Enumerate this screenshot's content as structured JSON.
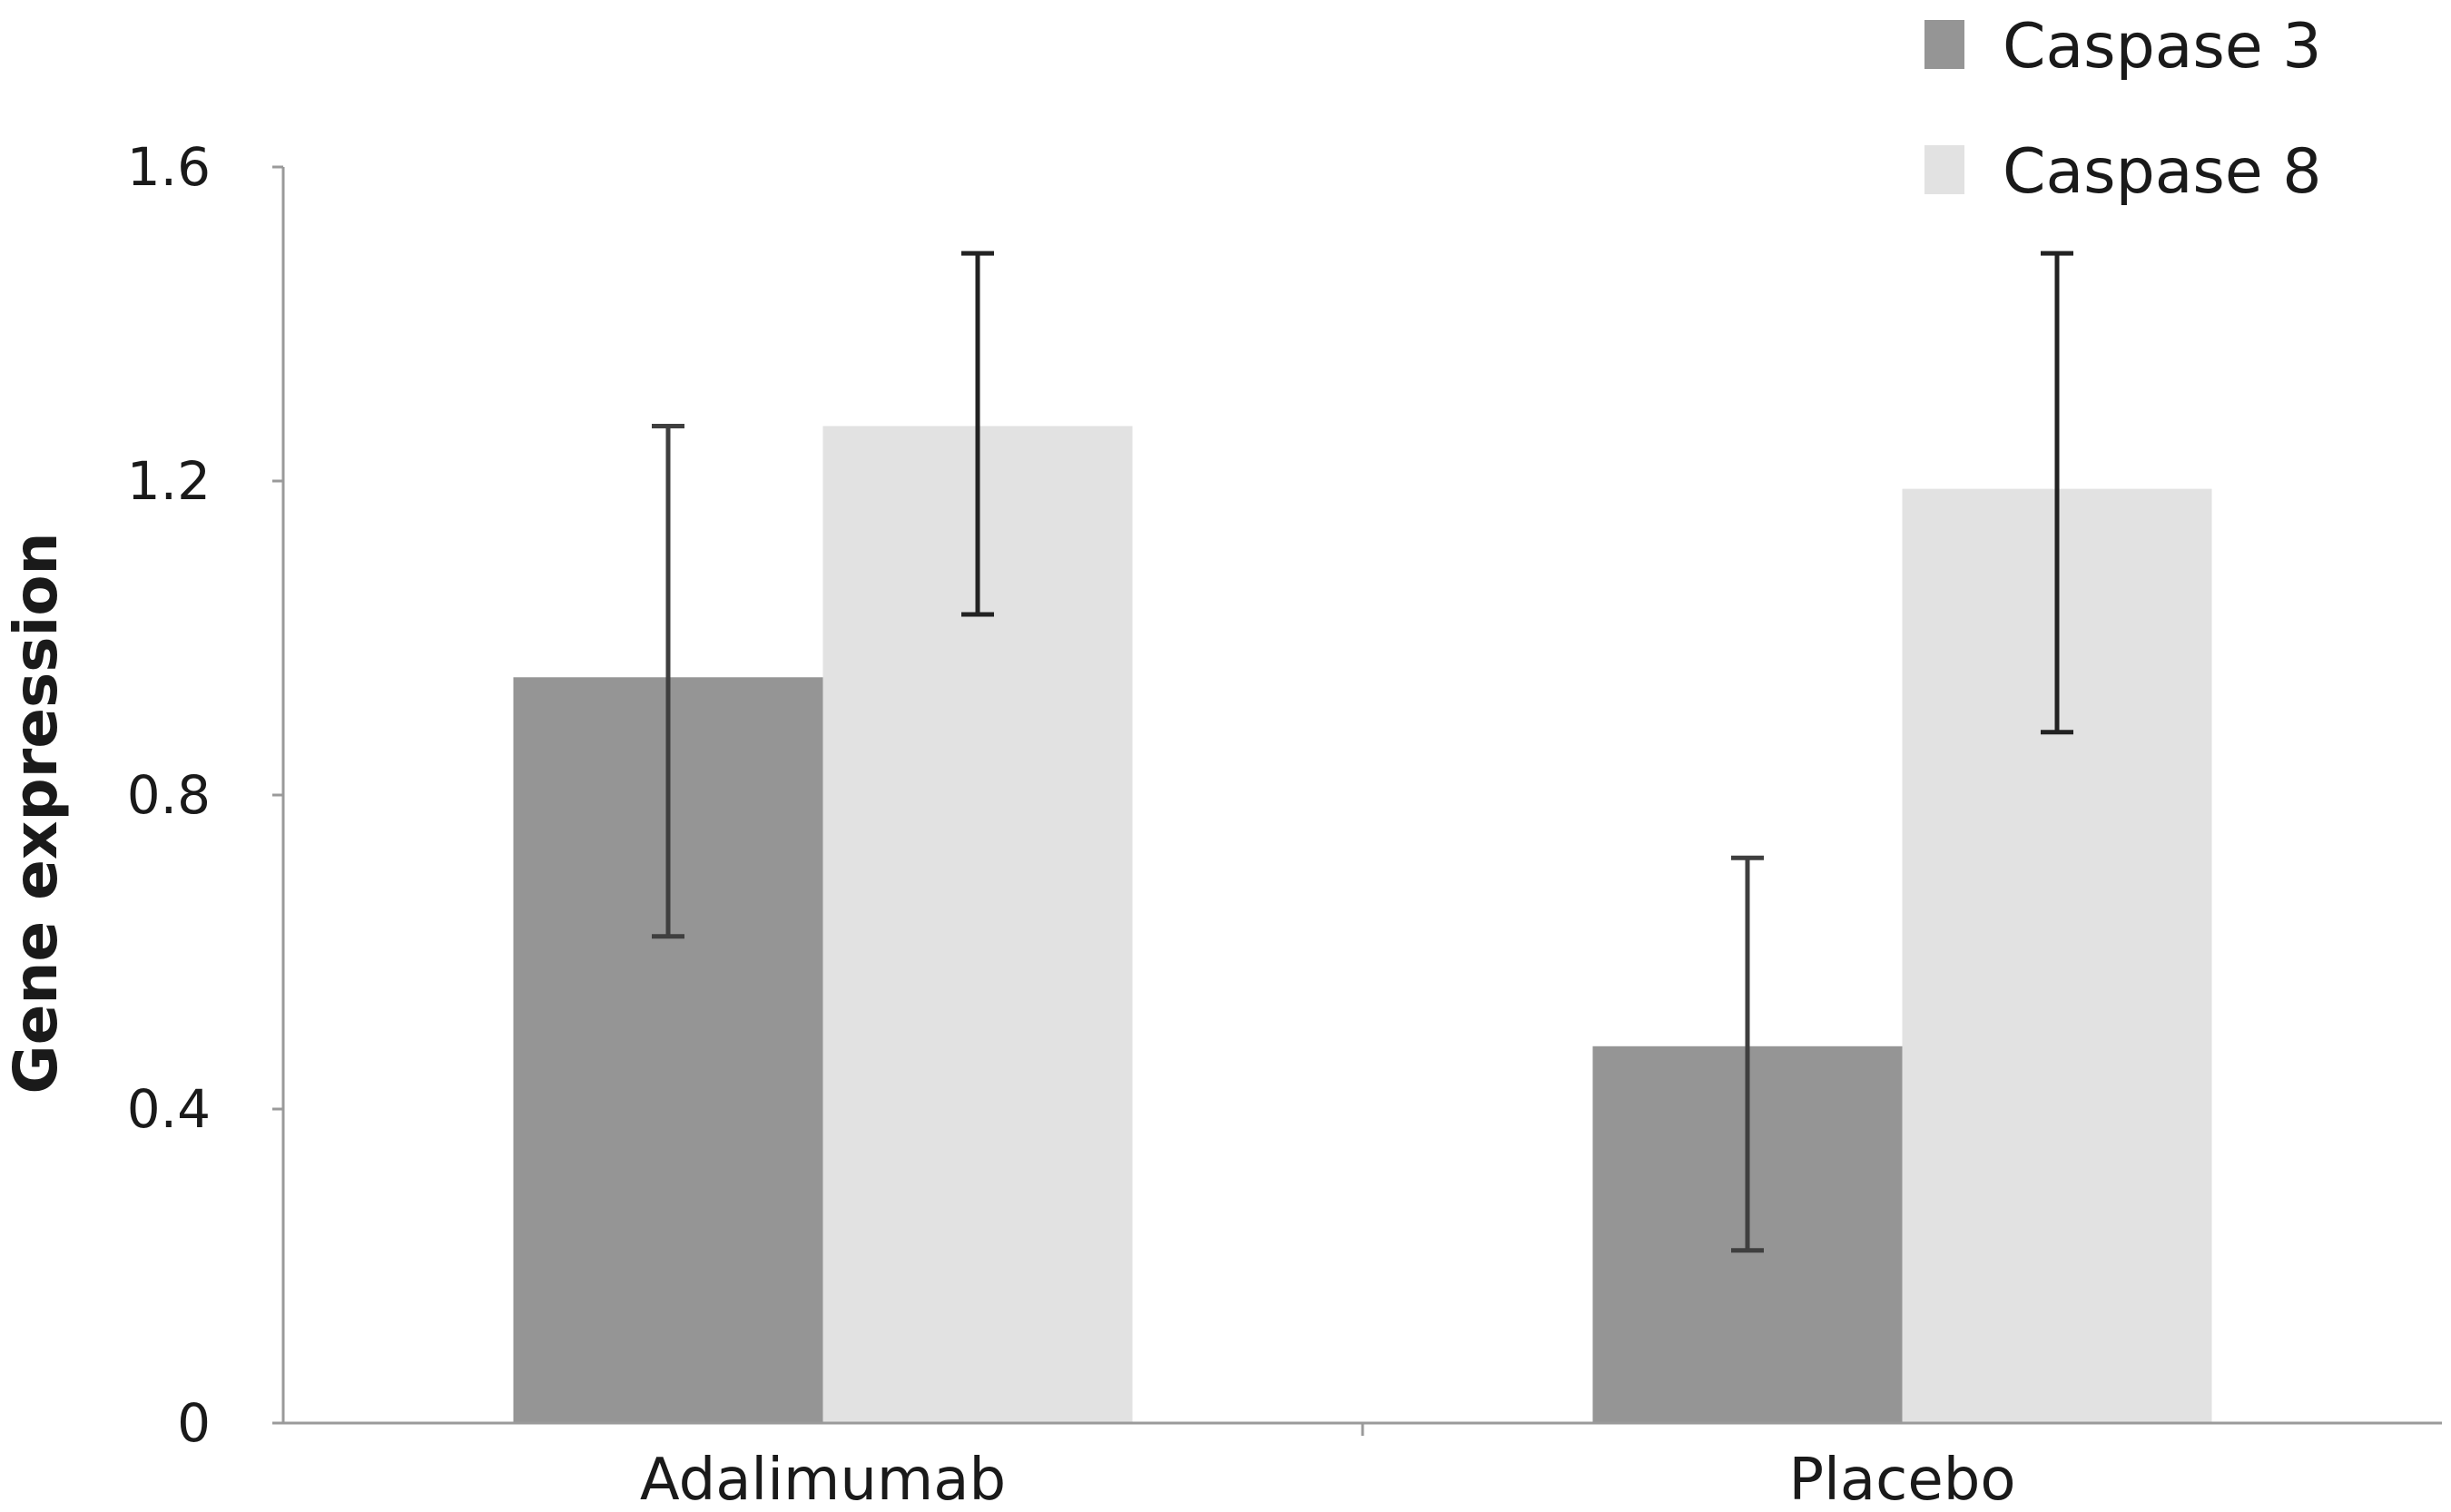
{
  "chart_data": {
    "type": "bar",
    "categories": [
      "Adalimumab",
      "Placebo"
    ],
    "series": [
      {
        "name": "Caspase 3",
        "color": "#959595",
        "values": [
          0.95,
          0.48
        ],
        "error_low": [
          0.62,
          0.22
        ],
        "error_high": [
          1.27,
          0.72
        ],
        "error_color": "#3f3f3f"
      },
      {
        "name": "Caspase 8",
        "color": "#e2e2e2",
        "values": [
          1.27,
          1.19
        ],
        "error_low": [
          1.03,
          0.88
        ],
        "error_high": [
          1.49,
          1.49
        ],
        "error_color": "#222222"
      }
    ],
    "title": "",
    "xlabel": "",
    "ylabel": "Gene expression",
    "ylim": [
      0,
      1.6
    ],
    "yticks": [
      0,
      0.4,
      0.8,
      1.2,
      1.6
    ],
    "ytick_labels": [
      "0",
      "0.4",
      "0.8",
      "1.2",
      "1.6"
    ],
    "grid": false,
    "legend_position": "top-right"
  }
}
